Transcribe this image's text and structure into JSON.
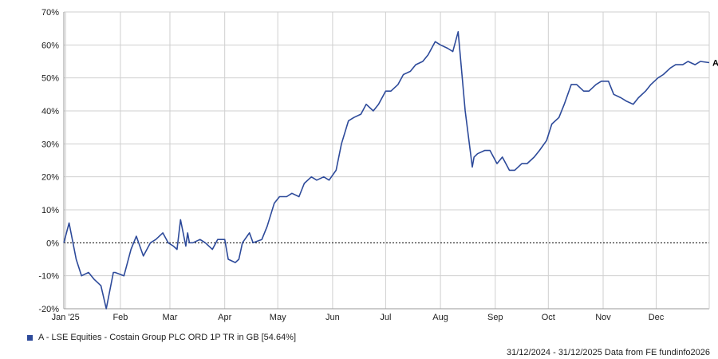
{
  "chart_data": {
    "type": "line",
    "ylim": [
      -20,
      70
    ],
    "y_ticks": [
      -20,
      -10,
      0,
      10,
      20,
      30,
      40,
      50,
      60,
      70
    ],
    "y_tick_labels": [
      "-20%",
      "-10%",
      "0%",
      "10%",
      "20%",
      "30%",
      "40%",
      "50%",
      "60%",
      "70%"
    ],
    "x_range": [
      "2024-12-31",
      "2025-12-31"
    ],
    "x_ticks": [
      {
        "date": "2025-01-01",
        "label": "Jan '25"
      },
      {
        "date": "2025-02-01",
        "label": "Feb"
      },
      {
        "date": "2025-03-01",
        "label": "Mar"
      },
      {
        "date": "2025-04-01",
        "label": "Apr"
      },
      {
        "date": "2025-05-01",
        "label": "May"
      },
      {
        "date": "2025-06-01",
        "label": "Jun"
      },
      {
        "date": "2025-07-01",
        "label": "Jul"
      },
      {
        "date": "2025-08-01",
        "label": "Aug"
      },
      {
        "date": "2025-09-01",
        "label": "Sep"
      },
      {
        "date": "2025-10-01",
        "label": "Oct"
      },
      {
        "date": "2025-11-01",
        "label": "Nov"
      },
      {
        "date": "2025-12-01",
        "label": "Dec"
      }
    ],
    "grid": true,
    "zero_line": "dotted",
    "legend_position": "bottom-left",
    "series": [
      {
        "name": "A - LSE Equities - Costain Group PLC ORD 1P TR in GB [54.64%]",
        "end_label": "A",
        "color": "#2d4a9a",
        "x": [
          "2024-12-31",
          "2025-01-03",
          "2025-01-07",
          "2025-01-10",
          "2025-01-14",
          "2025-01-17",
          "2025-01-21",
          "2025-01-24",
          "2025-01-28",
          "2025-01-29",
          "2025-02-03",
          "2025-02-07",
          "2025-02-10",
          "2025-02-14",
          "2025-02-18",
          "2025-02-21",
          "2025-02-25",
          "2025-02-28",
          "2025-03-03",
          "2025-03-05",
          "2025-03-07",
          "2025-03-10",
          "2025-03-11",
          "2025-03-12",
          "2025-03-14",
          "2025-03-18",
          "2025-03-21",
          "2025-03-25",
          "2025-03-28",
          "2025-04-01",
          "2025-04-03",
          "2025-04-07",
          "2025-04-09",
          "2025-04-11",
          "2025-04-15",
          "2025-04-17",
          "2025-04-22",
          "2025-04-25",
          "2025-04-29",
          "2025-05-02",
          "2025-05-06",
          "2025-05-09",
          "2025-05-13",
          "2025-05-16",
          "2025-05-20",
          "2025-05-23",
          "2025-05-27",
          "2025-05-30",
          "2025-06-03",
          "2025-06-06",
          "2025-06-10",
          "2025-06-13",
          "2025-06-17",
          "2025-06-20",
          "2025-06-24",
          "2025-06-27",
          "2025-07-01",
          "2025-07-04",
          "2025-07-08",
          "2025-07-11",
          "2025-07-15",
          "2025-07-18",
          "2025-07-22",
          "2025-07-25",
          "2025-07-29",
          "2025-08-01",
          "2025-08-05",
          "2025-08-08",
          "2025-08-11",
          "2025-08-13",
          "2025-08-15",
          "2025-08-19",
          "2025-08-20",
          "2025-08-22",
          "2025-08-26",
          "2025-08-29",
          "2025-09-02",
          "2025-09-05",
          "2025-09-09",
          "2025-09-12",
          "2025-09-16",
          "2025-09-19",
          "2025-09-23",
          "2025-09-26",
          "2025-09-30",
          "2025-10-03",
          "2025-10-07",
          "2025-10-10",
          "2025-10-14",
          "2025-10-17",
          "2025-10-21",
          "2025-10-24",
          "2025-10-28",
          "2025-10-31",
          "2025-11-04",
          "2025-11-07",
          "2025-11-11",
          "2025-11-14",
          "2025-11-18",
          "2025-11-21",
          "2025-11-25",
          "2025-11-28",
          "2025-12-02",
          "2025-12-05",
          "2025-12-09",
          "2025-12-12",
          "2025-12-16",
          "2025-12-19",
          "2025-12-23",
          "2025-12-26",
          "2025-12-31"
        ],
        "values": [
          0,
          6,
          -5,
          -10,
          -9,
          -11,
          -13,
          -20,
          -9,
          -9,
          -10,
          -2,
          2,
          -4,
          0,
          1,
          3,
          0,
          -1,
          -2,
          7,
          -1,
          3,
          0,
          0,
          1,
          0,
          -2,
          1,
          1,
          -5,
          -6,
          -5,
          0,
          3,
          0,
          1,
          5,
          12,
          14,
          14,
          15,
          14,
          18,
          20,
          19,
          20,
          19,
          22,
          30,
          37,
          38,
          39,
          42,
          40,
          42,
          46,
          46,
          48,
          51,
          52,
          54,
          55,
          57,
          61,
          60,
          59,
          58,
          64,
          52,
          40,
          23,
          26,
          27,
          28,
          28,
          24,
          26,
          22,
          22,
          24,
          24,
          26,
          28,
          31,
          36,
          38,
          42,
          48,
          48,
          46,
          46,
          48,
          49,
          49,
          45,
          44,
          43,
          42,
          44,
          46,
          48,
          50,
          51,
          53,
          54,
          54,
          55,
          54,
          55,
          54.64
        ]
      }
    ]
  },
  "legend": {
    "text": "A - LSE Equities - Costain Group PLC ORD 1P TR in GB [54.64%]",
    "color": "#2d4a9a"
  },
  "footer": {
    "text": "31/12/2024 - 31/12/2025 Data from FE fundinfo2026"
  }
}
